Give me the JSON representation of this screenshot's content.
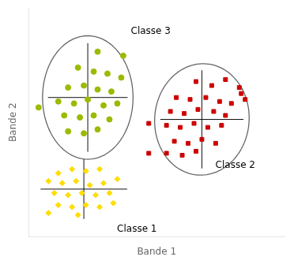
{
  "chart_data": {
    "type": "scatter",
    "xlabel": "Bande 1",
    "ylabel": "Bande 2",
    "xlim": [
      0,
      13
    ],
    "ylim": [
      0,
      11.5
    ],
    "tick_labels": false,
    "grid": false,
    "legend": false,
    "series": [
      {
        "name": "Classe 3",
        "color": "#99bb00",
        "marker": "circle",
        "points": [
          [
            3.5,
            9.3
          ],
          [
            4.8,
            9.1
          ],
          [
            2.5,
            8.5
          ],
          [
            3.3,
            8.3
          ],
          [
            4.0,
            8.2
          ],
          [
            4.7,
            8.0
          ],
          [
            2.0,
            7.5
          ],
          [
            2.8,
            7.6
          ],
          [
            3.5,
            7.4
          ],
          [
            4.2,
            7.3
          ],
          [
            1.5,
            6.8
          ],
          [
            2.3,
            6.7
          ],
          [
            3.0,
            6.9
          ],
          [
            3.8,
            6.6
          ],
          [
            4.5,
            6.7
          ],
          [
            1.8,
            6.1
          ],
          [
            2.6,
            6.0
          ],
          [
            3.3,
            6.1
          ],
          [
            4.1,
            5.9
          ],
          [
            2.0,
            5.3
          ],
          [
            2.8,
            5.2
          ],
          [
            3.5,
            5.4
          ],
          [
            0.5,
            6.5
          ]
        ],
        "ellipse": {
          "center": [
            3.0,
            7.0
          ],
          "width": 4.6,
          "height": 6.2,
          "angle": 0,
          "color": "#666666"
        },
        "crosshair": {
          "center": [
            3.0,
            7.0
          ],
          "x": [
            0.976,
            5.024
          ],
          "y": [
            4.272,
            9.728
          ],
          "color": "#111111"
        },
        "label_at": [
          6.2,
          10.3
        ]
      },
      {
        "name": "Classe 2",
        "color": "#cc0000",
        "marker": "square",
        "points": [
          [
            8.5,
            7.8
          ],
          [
            9.3,
            7.6
          ],
          [
            10.0,
            7.9
          ],
          [
            10.7,
            7.5
          ],
          [
            7.5,
            7.0
          ],
          [
            8.2,
            6.9
          ],
          [
            9.0,
            7.0
          ],
          [
            9.7,
            6.8
          ],
          [
            10.3,
            6.7
          ],
          [
            7.2,
            6.3
          ],
          [
            7.9,
            6.2
          ],
          [
            8.6,
            6.4
          ],
          [
            9.4,
            6.3
          ],
          [
            10.0,
            6.1
          ],
          [
            7.0,
            5.6
          ],
          [
            7.7,
            5.5
          ],
          [
            8.4,
            5.7
          ],
          [
            9.1,
            5.5
          ],
          [
            9.8,
            5.6
          ],
          [
            7.4,
            4.8
          ],
          [
            8.1,
            4.7
          ],
          [
            8.8,
            4.9
          ],
          [
            9.5,
            4.7
          ],
          [
            7.0,
            4.2
          ],
          [
            7.8,
            4.1
          ],
          [
            8.5,
            4.3
          ],
          [
            6.1,
            5.7
          ],
          [
            6.1,
            4.2
          ],
          [
            10.8,
            7.2
          ],
          [
            11.0,
            6.9
          ]
        ],
        "ellipse": {
          "center": [
            8.8,
            5.9
          ],
          "width": 4.8,
          "height": 5.6,
          "angle": -5,
          "color": "#666666"
        },
        "crosshair": {
          "center": [
            8.8,
            5.9
          ],
          "x": [
            6.688,
            10.912
          ],
          "y": [
            3.436,
            8.364
          ],
          "color": "#111111"
        },
        "label_at": [
          10.5,
          3.6
        ]
      },
      {
        "name": "Classe 1",
        "color": "#ffdd00",
        "marker": "diamond",
        "points": [
          [
            1.5,
            3.2
          ],
          [
            2.2,
            3.4
          ],
          [
            2.9,
            3.3
          ],
          [
            3.6,
            3.4
          ],
          [
            1.0,
            2.8
          ],
          [
            1.7,
            2.7
          ],
          [
            2.4,
            2.8
          ],
          [
            3.1,
            2.6
          ],
          [
            3.8,
            2.7
          ],
          [
            4.5,
            2.9
          ],
          [
            1.3,
            2.2
          ],
          [
            2.0,
            2.1
          ],
          [
            2.7,
            2.2
          ],
          [
            3.4,
            2.1
          ],
          [
            4.1,
            2.2
          ],
          [
            1.5,
            1.6
          ],
          [
            2.2,
            1.5
          ],
          [
            2.9,
            1.6
          ],
          [
            3.6,
            1.5
          ],
          [
            4.3,
            1.7
          ],
          [
            1.0,
            1.2
          ],
          [
            2.5,
            1.1
          ]
        ],
        "crosshair": {
          "center": [
            2.8,
            2.4
          ],
          "x": [
            0.6,
            5.0
          ],
          "y": [
            0.9,
            3.9
          ],
          "color": "#111111"
        },
        "label_at": [
          5.5,
          0.4
        ]
      }
    ]
  }
}
